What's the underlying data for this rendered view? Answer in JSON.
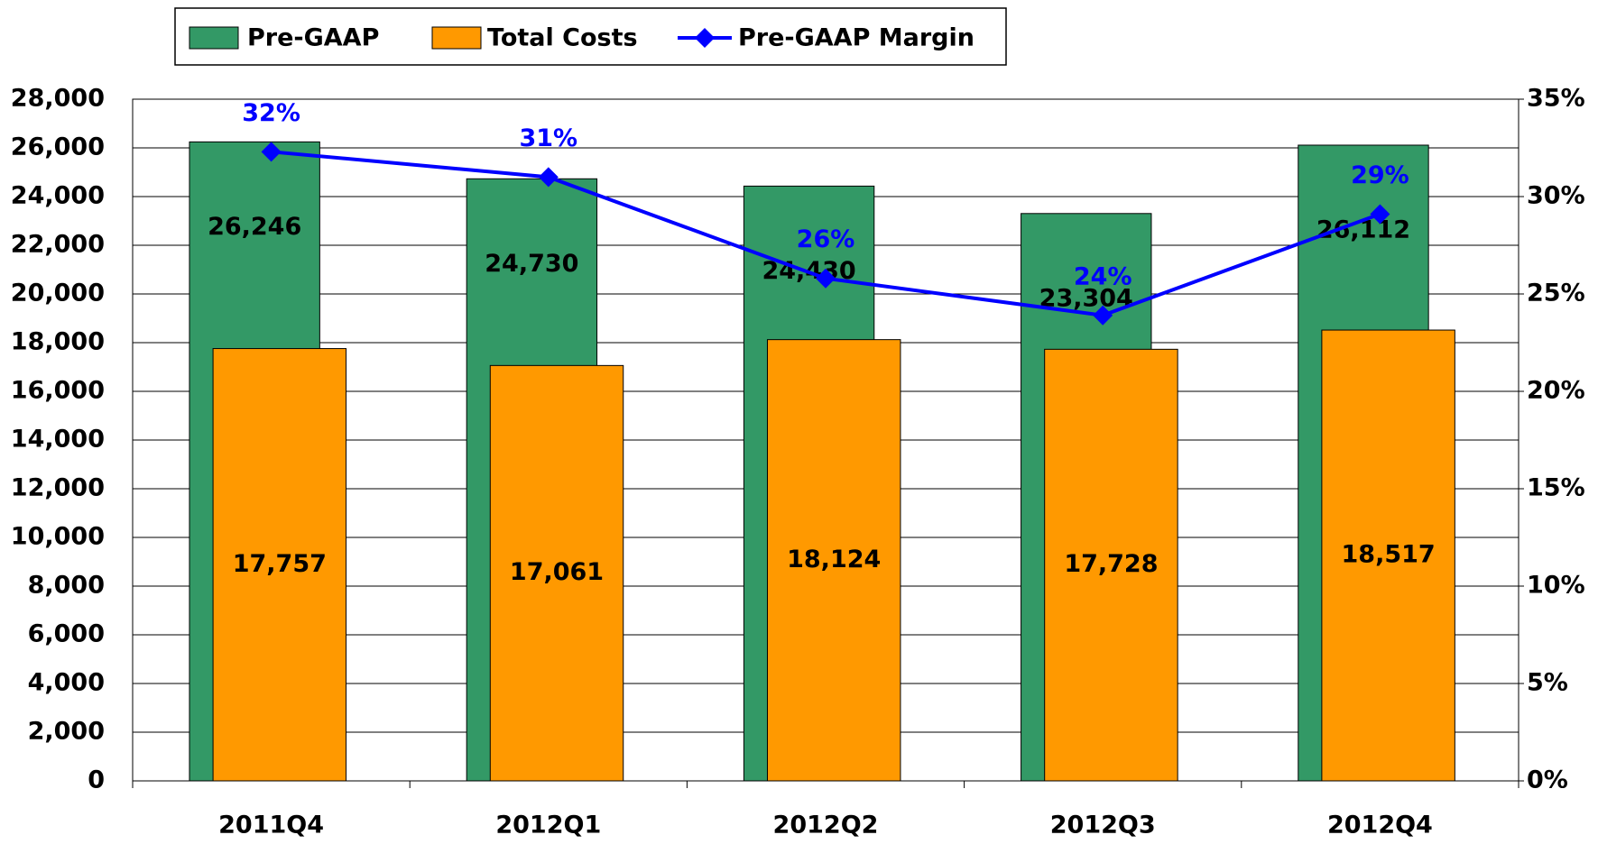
{
  "chart_data": {
    "type": "bar",
    "categories": [
      "2011Q4",
      "2012Q1",
      "2012Q2",
      "2012Q3",
      "2012Q4"
    ],
    "series": [
      {
        "name": "Pre-GAAP",
        "color": "#339966",
        "values": [
          26246,
          24730,
          24430,
          23304,
          26112
        ],
        "value_labels": [
          "26,246",
          "24,730",
          "24,430",
          "23,304",
          "26,112"
        ]
      },
      {
        "name": "Total Costs",
        "color": "#ff9900",
        "values": [
          17757,
          17061,
          18124,
          17728,
          18517
        ],
        "value_labels": [
          "17,757",
          "17,061",
          "18,124",
          "17,728",
          "18,517"
        ]
      },
      {
        "name": "Pre-GAAP Margin",
        "type": "line",
        "axis": "y2",
        "color": "#0000ff",
        "values": [
          32.3,
          31.0,
          25.8,
          23.9,
          29.1
        ],
        "value_labels": [
          "32%",
          "31%",
          "26%",
          "24%",
          "29%"
        ]
      }
    ],
    "ylim": [
      0,
      28000
    ],
    "yticks": [
      {
        "value": 0,
        "label": "0"
      },
      {
        "value": 2000,
        "label": "2,000"
      },
      {
        "value": 4000,
        "label": "4,000"
      },
      {
        "value": 6000,
        "label": "6,000"
      },
      {
        "value": 8000,
        "label": "8,000"
      },
      {
        "value": 10000,
        "label": "10,000"
      },
      {
        "value": 12000,
        "label": "12,000"
      },
      {
        "value": 14000,
        "label": "14,000"
      },
      {
        "value": 16000,
        "label": "16,000"
      },
      {
        "value": 18000,
        "label": "18,000"
      },
      {
        "value": 20000,
        "label": "20,000"
      },
      {
        "value": 22000,
        "label": "22,000"
      },
      {
        "value": 24000,
        "label": "24,000"
      },
      {
        "value": 26000,
        "label": "26,000"
      },
      {
        "value": 28000,
        "label": "28,000"
      }
    ],
    "y2lim": [
      0,
      35
    ],
    "y2ticks": [
      {
        "value": 0,
        "label": "0%"
      },
      {
        "value": 5,
        "label": "5%"
      },
      {
        "value": 10,
        "label": "10%"
      },
      {
        "value": 15,
        "label": "15%"
      },
      {
        "value": 20,
        "label": "20%"
      },
      {
        "value": 25,
        "label": "25%"
      },
      {
        "value": 30,
        "label": "30%"
      },
      {
        "value": 35,
        "label": "35%"
      }
    ],
    "grid": true,
    "legend": "top"
  }
}
